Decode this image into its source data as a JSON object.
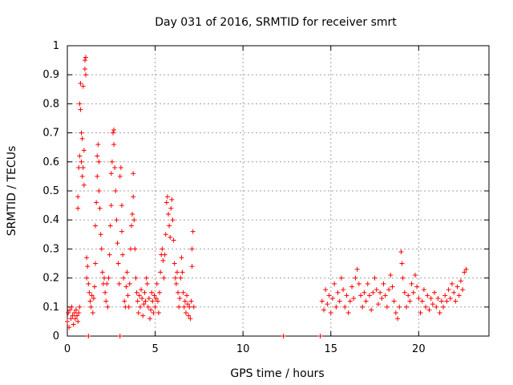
{
  "chart_data": {
    "type": "scatter",
    "title": "Day 031 of 2016, SRMTID for receiver smrt",
    "xlabel": "GPS time / hours",
    "ylabel": "SRMTID / TECUs",
    "xlim": [
      0,
      24
    ],
    "ylim": [
      0,
      1
    ],
    "xticks": [
      0,
      5,
      10,
      15,
      20
    ],
    "xtick_labels": [
      "0",
      "5",
      "10",
      "15",
      "20"
    ],
    "yticks": [
      0,
      0.1,
      0.2,
      0.3,
      0.4,
      0.5,
      0.6,
      0.7,
      0.8,
      0.9,
      1
    ],
    "ytick_labels": [
      "0",
      "0.1",
      "0.2",
      "0.3",
      "0.4",
      "0.5",
      "0.6",
      "0.7",
      "0.8",
      "0.9",
      "1"
    ],
    "grid": true,
    "marker": "+",
    "series": [
      {
        "name": "SRMTID",
        "color": "#ff0000",
        "points": [
          [
            0.0,
            0.05
          ],
          [
            0.05,
            0.08
          ],
          [
            0.1,
            0.03
          ],
          [
            0.15,
            0.09
          ],
          [
            0.2,
            0.06
          ],
          [
            0.25,
            0.1
          ],
          [
            0.3,
            0.07
          ],
          [
            0.35,
            0.04
          ],
          [
            0.4,
            0.08
          ],
          [
            0.45,
            0.06
          ],
          [
            0.5,
            0.09
          ],
          [
            0.55,
            0.07
          ],
          [
            0.6,
            0.05
          ],
          [
            0.65,
            0.08
          ],
          [
            0.7,
            0.1
          ],
          [
            0.6,
            0.44
          ],
          [
            0.6,
            0.48
          ],
          [
            0.65,
            0.58
          ],
          [
            0.7,
            0.62
          ],
          [
            0.7,
            0.8
          ],
          [
            0.75,
            0.87
          ],
          [
            0.75,
            0.78
          ],
          [
            0.8,
            0.7
          ],
          [
            0.8,
            0.6
          ],
          [
            0.85,
            0.55
          ],
          [
            0.85,
            0.68
          ],
          [
            0.9,
            0.86
          ],
          [
            0.9,
            0.58
          ],
          [
            0.95,
            0.52
          ],
          [
            0.95,
            0.64
          ],
          [
            1.0,
            0.95
          ],
          [
            1.0,
            0.92
          ],
          [
            1.05,
            0.96
          ],
          [
            1.05,
            0.9
          ],
          [
            1.1,
            0.27
          ],
          [
            1.1,
            0.2
          ],
          [
            1.15,
            0.24
          ],
          [
            1.2,
            0.18
          ],
          [
            1.2,
            0.0
          ],
          [
            1.25,
            0.15
          ],
          [
            1.3,
            0.12
          ],
          [
            1.35,
            0.1
          ],
          [
            1.4,
            0.14
          ],
          [
            1.45,
            0.08
          ],
          [
            1.5,
            0.13
          ],
          [
            1.55,
            0.17
          ],
          [
            1.6,
            0.25
          ],
          [
            1.6,
            0.38
          ],
          [
            1.65,
            0.46
          ],
          [
            1.7,
            0.55
          ],
          [
            1.7,
            0.62
          ],
          [
            1.75,
            0.66
          ],
          [
            1.8,
            0.6
          ],
          [
            1.8,
            0.5
          ],
          [
            1.85,
            0.44
          ],
          [
            1.9,
            0.35
          ],
          [
            1.95,
            0.3
          ],
          [
            2.0,
            0.22
          ],
          [
            2.05,
            0.18
          ],
          [
            2.1,
            0.2
          ],
          [
            2.15,
            0.15
          ],
          [
            2.2,
            0.12
          ],
          [
            2.25,
            0.18
          ],
          [
            2.3,
            0.1
          ],
          [
            2.35,
            0.2
          ],
          [
            2.4,
            0.28
          ],
          [
            2.45,
            0.38
          ],
          [
            2.5,
            0.45
          ],
          [
            2.5,
            0.56
          ],
          [
            2.55,
            0.6
          ],
          [
            2.6,
            0.7
          ],
          [
            2.65,
            0.71
          ],
          [
            2.65,
            0.66
          ],
          [
            2.7,
            0.58
          ],
          [
            2.75,
            0.5
          ],
          [
            2.8,
            0.4
          ],
          [
            2.85,
            0.32
          ],
          [
            2.9,
            0.25
          ],
          [
            2.95,
            0.18
          ],
          [
            3.0,
            0.0
          ],
          [
            3.0,
            0.55
          ],
          [
            3.05,
            0.58
          ],
          [
            3.1,
            0.45
          ],
          [
            3.1,
            0.36
          ],
          [
            3.15,
            0.28
          ],
          [
            3.2,
            0.2
          ],
          [
            3.25,
            0.12
          ],
          [
            3.3,
            0.1
          ],
          [
            3.35,
            0.17
          ],
          [
            3.4,
            0.22
          ],
          [
            3.45,
            0.14
          ],
          [
            3.5,
            0.1
          ],
          [
            3.55,
            0.18
          ],
          [
            3.6,
            0.3
          ],
          [
            3.65,
            0.38
          ],
          [
            3.7,
            0.42
          ],
          [
            3.75,
            0.56
          ],
          [
            3.75,
            0.48
          ],
          [
            3.8,
            0.4
          ],
          [
            3.85,
            0.3
          ],
          [
            3.9,
            0.2
          ],
          [
            3.95,
            0.15
          ],
          [
            4.0,
            0.12
          ],
          [
            4.05,
            0.08
          ],
          [
            4.1,
            0.14
          ],
          [
            4.15,
            0.1
          ],
          [
            4.2,
            0.16
          ],
          [
            4.25,
            0.13
          ],
          [
            4.3,
            0.07
          ],
          [
            4.35,
            0.11
          ],
          [
            4.4,
            0.15
          ],
          [
            4.45,
            0.12
          ],
          [
            4.5,
            0.2
          ],
          [
            4.55,
            0.18
          ],
          [
            4.6,
            0.1
          ],
          [
            4.65,
            0.13
          ],
          [
            4.7,
            0.06
          ],
          [
            4.75,
            0.09
          ],
          [
            4.8,
            0.15
          ],
          [
            4.85,
            0.12
          ],
          [
            4.9,
            0.08
          ],
          [
            4.95,
            0.14
          ],
          [
            5.0,
            0.1
          ],
          [
            5.05,
            0.13
          ],
          [
            5.1,
            0.18
          ],
          [
            5.15,
            0.12
          ],
          [
            5.2,
            0.08
          ],
          [
            5.25,
            0.15
          ],
          [
            5.3,
            0.22
          ],
          [
            5.35,
            0.28
          ],
          [
            5.4,
            0.3
          ],
          [
            5.45,
            0.26
          ],
          [
            5.5,
            0.2
          ],
          [
            5.55,
            0.28
          ],
          [
            5.6,
            0.35
          ],
          [
            5.65,
            0.46
          ],
          [
            5.7,
            0.48
          ],
          [
            5.75,
            0.42
          ],
          [
            5.8,
            0.38
          ],
          [
            5.85,
            0.34
          ],
          [
            5.9,
            0.44
          ],
          [
            5.95,
            0.47
          ],
          [
            6.0,
            0.4
          ],
          [
            6.05,
            0.33
          ],
          [
            6.1,
            0.25
          ],
          [
            6.15,
            0.2
          ],
          [
            6.2,
            0.18
          ],
          [
            6.25,
            0.22
          ],
          [
            6.3,
            0.15
          ],
          [
            6.35,
            0.1
          ],
          [
            6.4,
            0.13
          ],
          [
            6.45,
            0.2
          ],
          [
            6.5,
            0.27
          ],
          [
            6.55,
            0.22
          ],
          [
            6.6,
            0.15
          ],
          [
            6.65,
            0.1
          ],
          [
            6.7,
            0.12
          ],
          [
            6.75,
            0.08
          ],
          [
            6.8,
            0.14
          ],
          [
            6.85,
            0.11
          ],
          [
            6.9,
            0.07
          ],
          [
            6.95,
            0.1
          ],
          [
            7.0,
            0.06
          ],
          [
            7.05,
            0.12
          ],
          [
            7.1,
            0.24
          ],
          [
            7.1,
            0.3
          ],
          [
            7.15,
            0.36
          ],
          [
            7.2,
            0.1
          ],
          [
            12.3,
            0.0
          ],
          [
            14.4,
            0.0
          ],
          [
            14.5,
            0.12
          ],
          [
            14.6,
            0.09
          ],
          [
            14.7,
            0.16
          ],
          [
            14.8,
            0.11
          ],
          [
            14.9,
            0.14
          ],
          [
            15.0,
            0.08
          ],
          [
            15.1,
            0.13
          ],
          [
            15.2,
            0.18
          ],
          [
            15.3,
            0.1
          ],
          [
            15.4,
            0.15
          ],
          [
            15.5,
            0.12
          ],
          [
            15.6,
            0.2
          ],
          [
            15.7,
            0.16
          ],
          [
            15.8,
            0.1
          ],
          [
            15.9,
            0.14
          ],
          [
            16.0,
            0.08
          ],
          [
            16.1,
            0.12
          ],
          [
            16.2,
            0.17
          ],
          [
            16.3,
            0.13
          ],
          [
            16.4,
            0.2
          ],
          [
            16.5,
            0.23
          ],
          [
            16.6,
            0.18
          ],
          [
            16.7,
            0.14
          ],
          [
            16.8,
            0.1
          ],
          [
            16.9,
            0.15
          ],
          [
            17.0,
            0.12
          ],
          [
            17.1,
            0.18
          ],
          [
            17.2,
            0.14
          ],
          [
            17.3,
            0.09
          ],
          [
            17.4,
            0.15
          ],
          [
            17.5,
            0.2
          ],
          [
            17.6,
            0.16
          ],
          [
            17.7,
            0.11
          ],
          [
            17.8,
            0.15
          ],
          [
            17.9,
            0.13
          ],
          [
            18.0,
            0.18
          ],
          [
            18.1,
            0.14
          ],
          [
            18.2,
            0.1
          ],
          [
            18.3,
            0.16
          ],
          [
            18.4,
            0.21
          ],
          [
            18.5,
            0.17
          ],
          [
            18.6,
            0.12
          ],
          [
            18.7,
            0.08
          ],
          [
            18.8,
            0.06
          ],
          [
            18.9,
            0.1
          ],
          [
            19.0,
            0.29
          ],
          [
            19.05,
            0.25
          ],
          [
            19.1,
            0.2
          ],
          [
            19.2,
            0.15
          ],
          [
            19.3,
            0.1
          ],
          [
            19.4,
            0.14
          ],
          [
            19.5,
            0.12
          ],
          [
            19.6,
            0.18
          ],
          [
            19.7,
            0.15
          ],
          [
            19.8,
            0.21
          ],
          [
            19.9,
            0.17
          ],
          [
            20.0,
            0.13
          ],
          [
            20.1,
            0.08
          ],
          [
            20.2,
            0.12
          ],
          [
            20.3,
            0.16
          ],
          [
            20.4,
            0.1
          ],
          [
            20.5,
            0.14
          ],
          [
            20.6,
            0.09
          ],
          [
            20.7,
            0.13
          ],
          [
            20.8,
            0.11
          ],
          [
            20.9,
            0.15
          ],
          [
            21.0,
            0.1
          ],
          [
            21.1,
            0.13
          ],
          [
            21.2,
            0.08
          ],
          [
            21.3,
            0.12
          ],
          [
            21.4,
            0.1
          ],
          [
            21.5,
            0.14
          ],
          [
            21.6,
            0.12
          ],
          [
            21.7,
            0.16
          ],
          [
            21.8,
            0.13
          ],
          [
            21.9,
            0.18
          ],
          [
            22.0,
            0.15
          ],
          [
            22.1,
            0.12
          ],
          [
            22.2,
            0.17
          ],
          [
            22.3,
            0.14
          ],
          [
            22.4,
            0.19
          ],
          [
            22.5,
            0.16
          ],
          [
            22.6,
            0.22
          ],
          [
            22.7,
            0.23
          ]
        ]
      }
    ]
  }
}
